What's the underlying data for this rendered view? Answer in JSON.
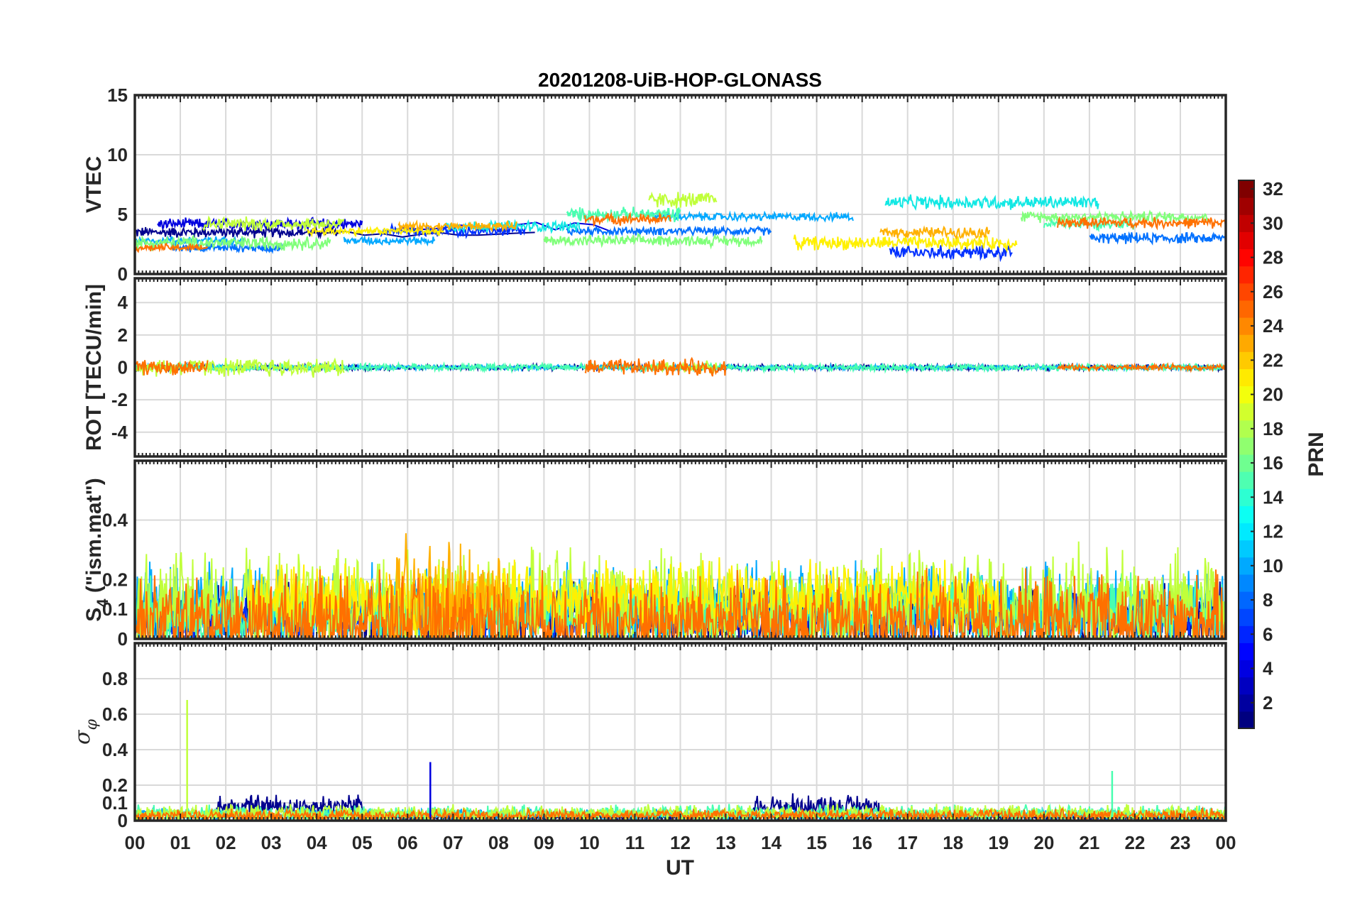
{
  "chart_data": {
    "type": "line",
    "title": "20201208-UiB-HOP-GLONASS",
    "xlabel": "UT",
    "x_ticks": [
      "00",
      "01",
      "02",
      "03",
      "04",
      "05",
      "06",
      "07",
      "08",
      "09",
      "10",
      "11",
      "12",
      "13",
      "14",
      "15",
      "16",
      "17",
      "18",
      "19",
      "20",
      "21",
      "22",
      "23",
      "00"
    ],
    "x_range_hours": [
      0,
      24
    ],
    "grid": true,
    "colorbar": {
      "label": "PRN",
      "range": [
        1,
        32
      ],
      "ticks": [
        "2",
        "4",
        "6",
        "8",
        "10",
        "12",
        "14",
        "16",
        "18",
        "20",
        "22",
        "24",
        "26",
        "28",
        "30",
        "32"
      ],
      "colormap": "jet",
      "placement": "right"
    },
    "panels": [
      {
        "id": "vtec",
        "ylabel": "VTEC",
        "ylim": [
          0,
          15
        ],
        "yticks": [
          "0",
          "5",
          "10",
          "15"
        ],
        "series": [
          {
            "prn": 2,
            "color": "#00008F",
            "segments": [
              [
                0.0,
                3.5,
                4.5,
                0.4
              ],
              [
                8.8,
                3.4,
                3.8,
                0.3
              ]
            ]
          },
          {
            "prn": 4,
            "color": "#0000DF",
            "segments": [
              [
                0.5,
                4.2,
                5.0,
                0.4
              ],
              [
                10.5,
                4.0,
                5.5,
                0.4
              ]
            ]
          },
          {
            "prn": 6,
            "color": "#0030FF",
            "segments": [
              [
                5.4,
                3.6,
                8.6,
                0.4
              ],
              [
                16.6,
                1.8,
                19.3,
                0.5
              ]
            ]
          },
          {
            "prn": 8,
            "color": "#0070FF",
            "segments": [
              [
                0.8,
                2.2,
                3.3,
                0.3
              ],
              [
                9.5,
                3.6,
                14.0,
                0.3
              ],
              [
                21.0,
                3.0,
                24.0,
                0.4
              ]
            ]
          },
          {
            "prn": 10,
            "color": "#00A8FF",
            "segments": [
              [
                0.0,
                2.8,
                2.4,
                0.3
              ],
              [
                4.6,
                2.8,
                6.6,
                0.3
              ],
              [
                11.4,
                4.8,
                15.8,
                0.3
              ]
            ]
          },
          {
            "prn": 12,
            "color": "#12E8E4",
            "segments": [
              [
                6.8,
                4.0,
                9.8,
                0.4
              ],
              [
                16.5,
                6.0,
                21.2,
                0.5
              ]
            ]
          },
          {
            "prn": 14,
            "color": "#48FFB0",
            "segments": [
              [
                9.5,
                5.0,
                12.0,
                0.5
              ],
              [
                20.0,
                4.2,
                22.0,
                0.4
              ]
            ]
          },
          {
            "prn": 16,
            "color": "#80FF7A",
            "segments": [
              [
                0.0,
                2.6,
                4.3,
                0.5
              ],
              [
                9.0,
                2.8,
                13.8,
                0.4
              ],
              [
                19.5,
                4.8,
                23.6,
                0.4
              ]
            ]
          },
          {
            "prn": 18,
            "color": "#C0FF3A",
            "segments": [
              [
                1.5,
                4.2,
                4.6,
                0.5
              ],
              [
                11.3,
                6.2,
                12.8,
                0.6
              ]
            ]
          },
          {
            "prn": 20,
            "color": "#FFF000",
            "segments": [
              [
                3.8,
                3.6,
                6.8,
                0.3
              ],
              [
                14.5,
                2.6,
                19.4,
                0.5
              ]
            ]
          },
          {
            "prn": 22,
            "color": "#FFB000",
            "segments": [
              [
                5.8,
                4.0,
                8.4,
                0.3
              ],
              [
                16.4,
                3.5,
                18.8,
                0.4
              ]
            ]
          },
          {
            "prn": 24,
            "color": "#FF7000",
            "segments": [
              [
                0.0,
                2.2,
                1.6,
                0.3
              ],
              [
                9.9,
                4.6,
                11.8,
                0.4
              ],
              [
                20.3,
                4.3,
                24.0,
                0.4
              ]
            ]
          }
        ]
      },
      {
        "id": "rot",
        "ylabel": "ROT [TECU/min]",
        "ylim": [
          -5.5,
          5.5
        ],
        "yticks": [
          "-4",
          "-2",
          "0",
          "2",
          "4"
        ],
        "series": [
          {
            "prn": 2,
            "color": "#00008F",
            "segments": [
              [
                0.0,
                0.0,
                24.0,
                0.15
              ]
            ]
          },
          {
            "prn": 10,
            "color": "#00A8FF",
            "segments": [
              [
                0.0,
                0.0,
                24.0,
                0.12
              ]
            ]
          },
          {
            "prn": 14,
            "color": "#48FFB0",
            "segments": [
              [
                0.0,
                0.0,
                24.0,
                0.2
              ]
            ]
          },
          {
            "prn": 18,
            "color": "#C0FF3A",
            "segments": [
              [
                0.0,
                0.0,
                4.6,
                0.5
              ],
              [
                11.3,
                0.0,
                12.8,
                0.3
              ]
            ]
          },
          {
            "prn": 24,
            "color": "#FF7000",
            "segments": [
              [
                0.0,
                0.0,
                1.6,
                0.4
              ],
              [
                9.9,
                0.0,
                13.0,
                0.45
              ],
              [
                20.3,
                0.0,
                24.0,
                0.15
              ]
            ]
          }
        ]
      },
      {
        "id": "s4",
        "ylabel": "S4 (\"ism.mat\")",
        "ylim": [
          0,
          0.6
        ],
        "yticks": [
          "0",
          "0.1",
          "0.2",
          "0.4"
        ],
        "series": [
          {
            "prn": 2,
            "color": "#00008F",
            "segments": [
              [
                0.0,
                0.08,
                24.0,
                0.09
              ]
            ]
          },
          {
            "prn": 6,
            "color": "#0030FF",
            "segments": [
              [
                0.0,
                0.07,
                24.0,
                0.07
              ]
            ]
          },
          {
            "prn": 10,
            "color": "#00A8FF",
            "segments": [
              [
                0.0,
                0.1,
                24.0,
                0.12
              ]
            ]
          },
          {
            "prn": 14,
            "color": "#48FFB0",
            "segments": [
              [
                0.0,
                0.09,
                24.0,
                0.1
              ]
            ]
          },
          {
            "prn": 18,
            "color": "#C0FF3A",
            "segments": [
              [
                0.0,
                0.12,
                24.0,
                0.15
              ]
            ]
          },
          {
            "prn": 20,
            "color": "#FFF000",
            "segments": [
              [
                2.5,
                0.14,
                19.0,
                0.1
              ]
            ]
          },
          {
            "prn": 22,
            "color": "#FFB000",
            "segments": [
              [
                5.6,
                0.1,
                8.4,
                0.2
              ]
            ]
          },
          {
            "prn": 24,
            "color": "#FF7000",
            "segments": [
              [
                0.0,
                0.06,
                24.0,
                0.13
              ]
            ]
          }
        ]
      },
      {
        "id": "sigma",
        "ylabel": "σφ",
        "ylim": [
          0,
          1.0
        ],
        "yticks": [
          "0",
          "0.1",
          "0.2",
          "0.4",
          "0.6",
          "0.8"
        ],
        "series": [
          {
            "prn": 2,
            "color": "#00008F",
            "segments": [
              [
                1.8,
                0.08,
                5.0,
                0.06
              ],
              [
                13.6,
                0.08,
                16.4,
                0.06
              ],
              [
                5.0,
                0.02,
                24.0,
                0.02
              ]
            ]
          },
          {
            "prn": 10,
            "color": "#00A8FF",
            "segments": [
              [
                0.0,
                0.03,
                24.0,
                0.03
              ]
            ]
          },
          {
            "prn": 14,
            "color": "#48FFB0",
            "segments": [
              [
                0.0,
                0.04,
                24.0,
                0.04
              ]
            ]
          },
          {
            "prn": 18,
            "color": "#C0FF3A",
            "segments": [
              [
                0.0,
                0.04,
                24.0,
                0.04
              ]
            ]
          },
          {
            "prn": 24,
            "color": "#FF7000",
            "segments": [
              [
                0.0,
                0.03,
                24.0,
                0.03
              ]
            ]
          }
        ],
        "spikes": [
          [
            1.15,
            0.68,
            "#C0FF3A"
          ],
          [
            6.5,
            0.33,
            "#0000DF"
          ],
          [
            21.5,
            0.28,
            "#48FFB0"
          ]
        ]
      }
    ]
  }
}
